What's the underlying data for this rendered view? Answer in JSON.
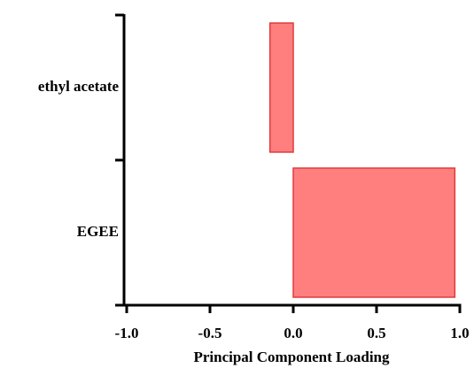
{
  "chart_data": {
    "type": "barh",
    "x_label": "Principal Component Loading",
    "categories": [
      "ethyl acetate",
      "EGEE"
    ],
    "values": [
      -0.14,
      0.97
    ],
    "color": "#ff7f7f",
    "edge_color": "#e03a3a",
    "xlim": [
      -1,
      1
    ],
    "xticks": [
      {
        "value": -1,
        "label": "-1.0"
      },
      -0.5,
      {
        "value": 0,
        "label": "0.0"
      },
      0.5,
      {
        "value": 1,
        "label": "1.0"
      }
    ]
  }
}
